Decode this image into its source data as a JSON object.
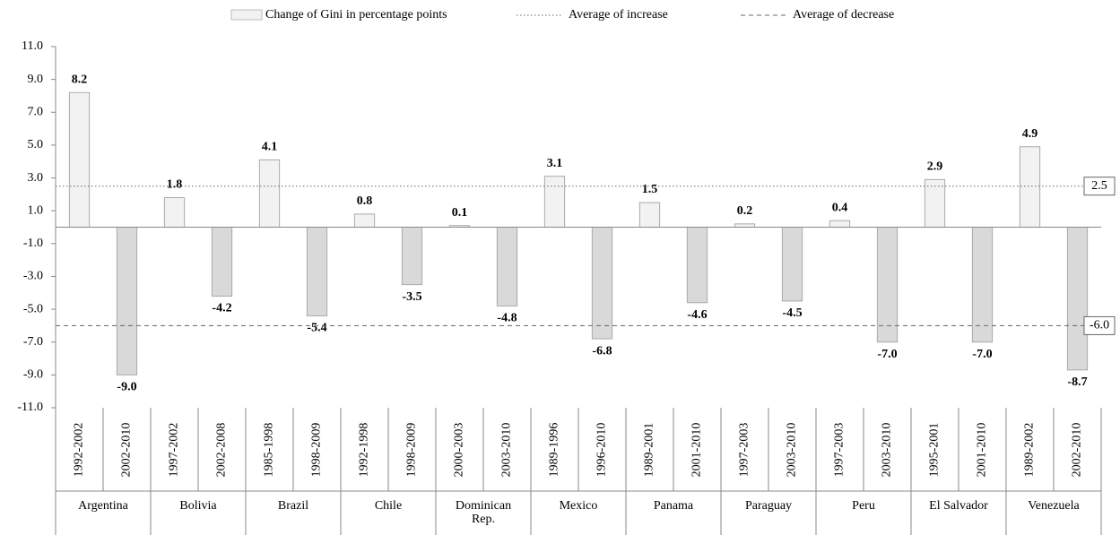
{
  "chart_data": {
    "type": "bar",
    "categories": [
      "1992-2002",
      "2002-2010",
      "1997-2002",
      "2002-2008",
      "1985-1998",
      "1998-2009",
      "1992-1998",
      "1998-2009",
      "2000-2003",
      "2003-2010",
      "1989-1996",
      "1996-2010",
      "1989-2001",
      "2001-2010",
      "1997-2003",
      "2003-2010",
      "1997-2003",
      "2003-2010",
      "1995-2001",
      "2001-2010",
      "1989-2002",
      "2002-2010"
    ],
    "groups": [
      "Argentina",
      "Bolivia",
      "Brazil",
      "Chile",
      "Dominican Rep.",
      "Mexico",
      "Panama",
      "Paraguay",
      "Peru",
      "El Salvador",
      "Venezuela"
    ],
    "series": [
      {
        "name": "Change of Gini in percentage points",
        "values": [
          8.2,
          -9.0,
          1.8,
          -4.2,
          4.1,
          -5.4,
          0.8,
          -3.5,
          0.1,
          -4.8,
          3.1,
          -6.8,
          1.5,
          -4.6,
          0.2,
          -4.5,
          0.4,
          -7.0,
          2.9,
          -7.0,
          4.9,
          -8.7
        ],
        "value_labels": [
          "8.2",
          "-9.0",
          "1.8",
          "-4.2",
          "4.1",
          "-5.4",
          "0.8",
          "-3.5",
          "0.1",
          "-4.8",
          "3.1",
          "-6.8",
          "1.5",
          "-4.6",
          "0.2",
          "-4.5",
          "0.4",
          "-7.0",
          "2.9",
          "-7.0",
          "4.9",
          "-8.7"
        ],
        "increase_color": "#f2f2f2",
        "decrease_color": "#d9d9d9"
      }
    ],
    "reference_lines": [
      {
        "name": "Average of increase",
        "value": 2.5,
        "style": "dotted"
      },
      {
        "name": "Average of decrease",
        "value": -6.0,
        "label": "-6.0",
        "style": "dashed"
      }
    ],
    "ylim": [
      -11,
      11
    ],
    "yticks": [
      {
        "value": 11,
        "label": "11.0"
      },
      {
        "value": 9,
        "label": "9.0"
      },
      {
        "value": 7,
        "label": "7.0"
      },
      {
        "value": 5,
        "label": "5.0"
      },
      {
        "value": 3,
        "label": "3.0"
      },
      {
        "value": 1,
        "label": "1.0"
      },
      {
        "value": -1,
        "label": "-1.0"
      },
      {
        "value": -3,
        "label": "-3.0"
      },
      {
        "value": -5,
        "label": "-5.0"
      },
      {
        "value": -7,
        "label": "-7.0"
      },
      {
        "value": -9,
        "label": "-9.0"
      },
      {
        "value": -11,
        "label": "-11.0"
      }
    ]
  }
}
